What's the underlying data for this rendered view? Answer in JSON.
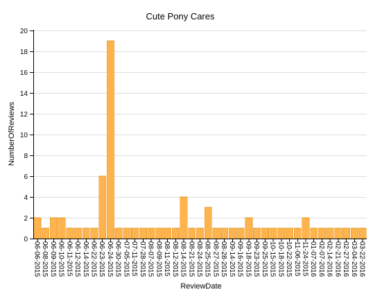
{
  "chart_data": {
    "type": "bar",
    "title": "Cute Pony Cares",
    "xlabel": "ReviewDate",
    "ylabel": "NumberOfReviews",
    "ylim": [
      0,
      20
    ],
    "yticks": [
      0,
      2,
      4,
      6,
      8,
      10,
      12,
      14,
      16,
      18,
      20
    ],
    "grid": true,
    "bar_color": "#ffb34d",
    "categories": [
      "06-06-2015",
      "06-08-2015",
      "06-09-2015",
      "06-10-2015",
      "06-11-2015",
      "06-12-2015",
      "06-14-2015",
      "06-22-2015",
      "06-23-2015",
      "06-24-2015",
      "06-30-2015",
      "07-05-2015",
      "07-11-2015",
      "07-28-2015",
      "08-07-2015",
      "08-09-2015",
      "08-11-2015",
      "08-12-2015",
      "08-14-2015",
      "08-21-2015",
      "08-24-2015",
      "08-25-2015",
      "08-27-2015",
      "08-28-2015",
      "09-14-2015",
      "09-16-2015",
      "09-18-2015",
      "09-23-2015",
      "09-25-2015",
      "10-15-2015",
      "10-18-2015",
      "10-22-2015",
      "11-06-2015",
      "11-24-2015",
      "01-07-2016",
      "02-07-2016",
      "02-14-2016",
      "02-21-2016",
      "02-27-2016",
      "03-04-2016",
      "03-22-2016"
    ],
    "values": [
      2,
      1,
      2,
      2,
      1,
      1,
      1,
      1,
      6,
      19,
      1,
      1,
      1,
      1,
      1,
      1,
      1,
      1,
      4,
      1,
      1,
      3,
      1,
      1,
      1,
      1,
      2,
      1,
      1,
      1,
      1,
      1,
      1,
      2,
      1,
      1,
      1,
      1,
      1,
      1,
      1
    ]
  }
}
